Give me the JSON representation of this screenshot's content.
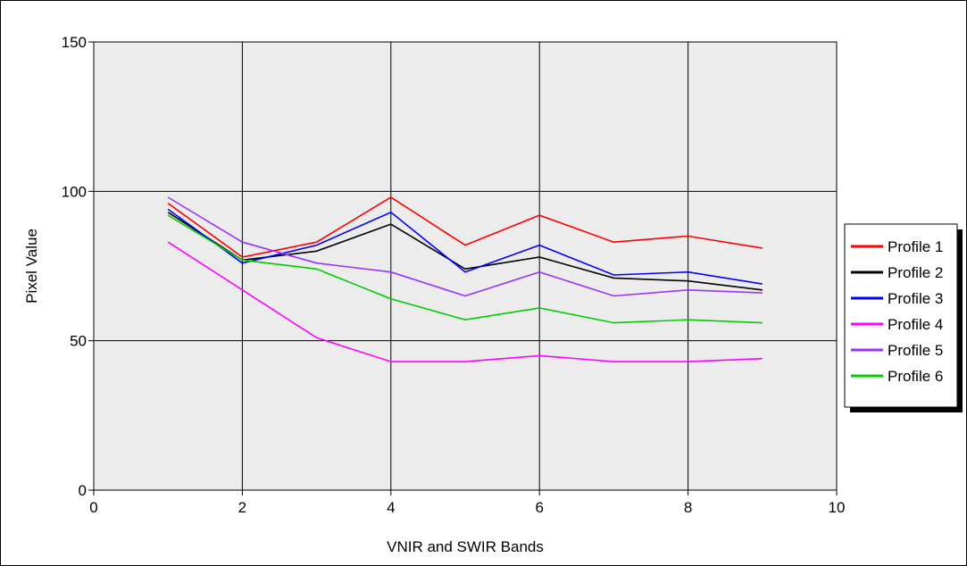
{
  "chart_data": {
    "type": "line",
    "title": "",
    "xlabel": "VNIR and SWIR Bands",
    "ylabel": "Pixel Value",
    "xlim": [
      0,
      10
    ],
    "ylim": [
      0,
      150
    ],
    "x_ticks": [
      "0",
      "2",
      "4",
      "6",
      "8",
      "10"
    ],
    "y_ticks": [
      "0",
      "50",
      "100",
      "150"
    ],
    "grid": true,
    "legend_position": "right",
    "x": [
      1,
      2,
      3,
      4,
      5,
      6,
      7,
      8,
      9
    ],
    "series": [
      {
        "name": "Profile 1",
        "color": "#ff0000",
        "values": [
          96,
          78,
          83,
          98,
          82,
          92,
          83,
          85,
          81
        ]
      },
      {
        "name": "Profile 2",
        "color": "#000000",
        "values": [
          93,
          77,
          80,
          89,
          74,
          78,
          71,
          70,
          67
        ]
      },
      {
        "name": "Profile 3",
        "color": "#0000ff",
        "values": [
          94,
          76,
          82,
          93,
          73,
          82,
          72,
          73,
          69
        ]
      },
      {
        "name": "Profile 4",
        "color": "#ff00ff",
        "values": [
          83,
          67,
          51,
          43,
          43,
          45,
          43,
          43,
          44
        ]
      },
      {
        "name": "Profile 5",
        "color": "#9933ff",
        "values": [
          98,
          83,
          76,
          73,
          65,
          73,
          65,
          67,
          66
        ]
      },
      {
        "name": "Profile 6",
        "color": "#00cc00",
        "values": [
          92,
          77,
          74,
          64,
          57,
          61,
          56,
          57,
          56
        ]
      }
    ]
  }
}
